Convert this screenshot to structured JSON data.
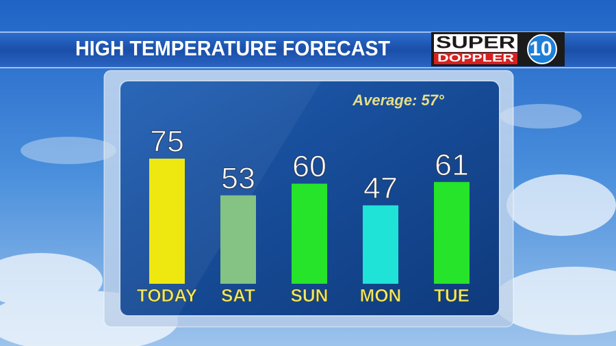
{
  "chart_data": {
    "type": "bar",
    "title": "HIGH TEMPERATURE FORECAST",
    "annotation": "Average: 57°",
    "logo": {
      "line1": "SUPER",
      "line2": "DOPPLER",
      "number": "10"
    },
    "categories": [
      "TODAY",
      "SAT",
      "SUN",
      "MON",
      "TUE"
    ],
    "values": [
      75,
      53,
      60,
      47,
      61
    ],
    "colors": [
      "#eee810",
      "#84c384",
      "#26e42a",
      "#1fe3d6",
      "#26e42a"
    ]
  }
}
